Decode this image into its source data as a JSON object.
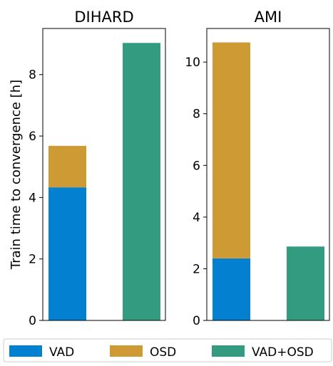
{
  "chart_data": {
    "type": "bar",
    "stacked": true,
    "ylabel": "Train time to convergence [h]",
    "legend": {
      "placement": "bottom",
      "entries": [
        {
          "name": "VAD",
          "color": "#0380cf"
        },
        {
          "name": "OSD",
          "color": "#ce9a33"
        },
        {
          "name": "VAD+OSD",
          "color": "#339b80"
        }
      ]
    },
    "panels": [
      {
        "title": "DIHARD",
        "ylim": [
          0,
          9.5
        ],
        "yticks": [
          "0",
          "2",
          "4",
          "6",
          "8"
        ],
        "bars": [
          {
            "segments": [
              {
                "series": "VAD",
                "value": 4.33
              },
              {
                "series": "OSD",
                "value": 1.35
              }
            ]
          },
          {
            "segments": [
              {
                "series": "VAD+OSD",
                "value": 9.03
              }
            ]
          }
        ]
      },
      {
        "title": "AMI",
        "ylim": [
          0,
          11.3
        ],
        "yticks": [
          "0",
          "2",
          "4",
          "6",
          "8",
          "10"
        ],
        "bars": [
          {
            "segments": [
              {
                "series": "VAD",
                "value": 2.4
              },
              {
                "series": "OSD",
                "value": 8.36
              }
            ]
          },
          {
            "segments": [
              {
                "series": "VAD+OSD",
                "value": 2.86
              }
            ]
          }
        ]
      }
    ]
  }
}
